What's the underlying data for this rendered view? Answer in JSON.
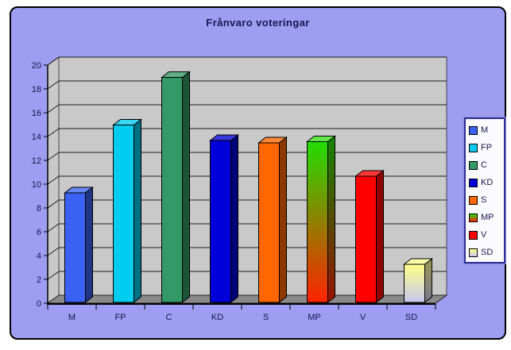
{
  "window": {
    "background": "#ffffff",
    "panel_fill": "#9d9df1",
    "panel_border": "#000000"
  },
  "chart_data": {
    "type": "bar",
    "title": "Frånvaro voteringar",
    "categories": [
      "M",
      "FP",
      "C",
      "KD",
      "S",
      "MP",
      "V",
      "SD"
    ],
    "values": [
      9.2,
      14.9,
      18.9,
      13.6,
      13.4,
      13.5,
      10.6,
      3.2
    ],
    "xlabel": "",
    "ylabel": "",
    "ylim": [
      0,
      20
    ],
    "yticks": [
      0,
      2,
      4,
      6,
      8,
      10,
      12,
      14,
      16,
      18,
      20
    ],
    "grid": true,
    "style": "3d-bar",
    "legend_position": "right",
    "legend_entries": [
      "M",
      "FP",
      "C",
      "KD",
      "S",
      "MP",
      "V",
      "SD"
    ],
    "colors": {
      "M": "#3a62f2",
      "FP": "#00ccf0",
      "C": "#339966",
      "KD": "#0000d8",
      "S": "#ff6600",
      "MP": [
        "#22dd00",
        "#ff2200"
      ],
      "V": "#ff0000",
      "SD": [
        "#ffff88",
        "#c8c8f0"
      ]
    },
    "wall_color": "#c9c9c9",
    "floor_color": "#8a8a8a",
    "gridline_color": "#1a1a1a",
    "text_color": "#16164e"
  }
}
